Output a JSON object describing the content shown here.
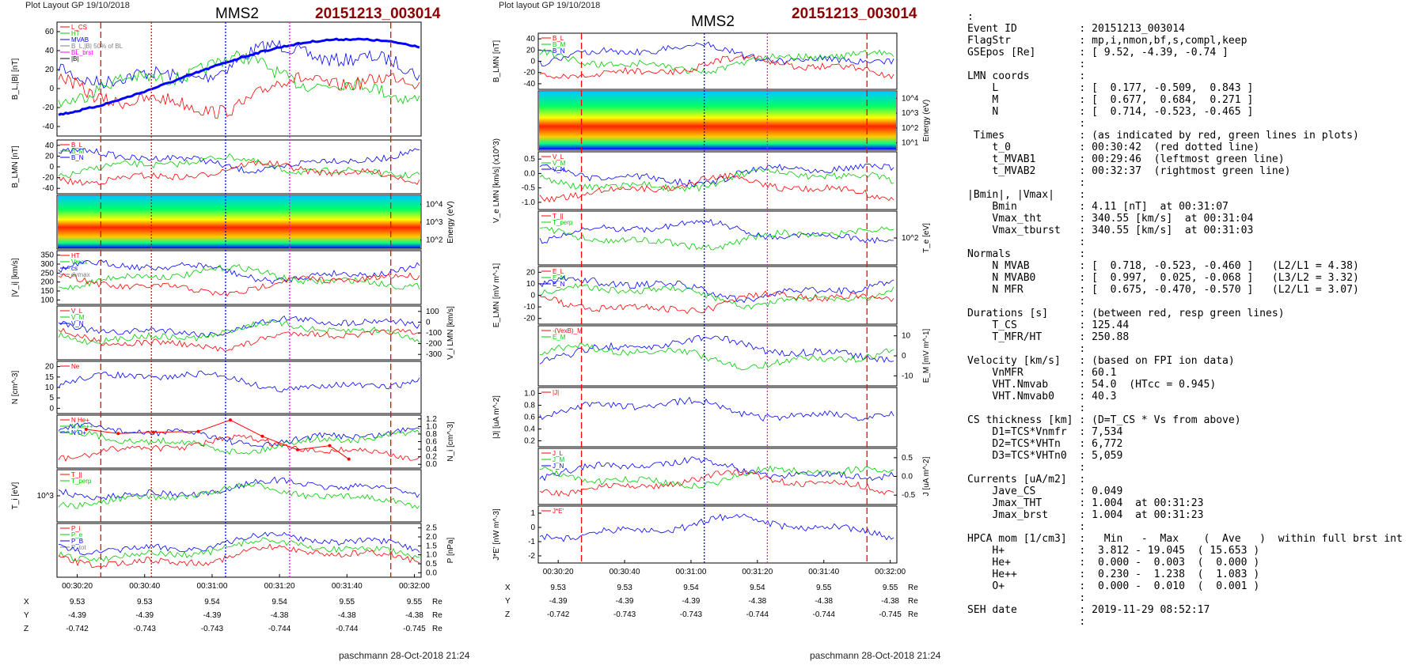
{
  "header": {
    "left_plot_layout": "Plot Layout GP 19/10/2018",
    "right_plot_layout": "Plot layout GP 19/10/2018",
    "spacecraft": "MMS2",
    "event": "20151213_003014",
    "footer": "paschmann 28-Oct-2018 21:24"
  },
  "colors": {
    "event": "#8b0000",
    "red": "#ff0000",
    "blue": "#0000ff",
    "green": "#00cc00",
    "magenta": "#ff00ff",
    "gray": "#808080"
  },
  "chart_data": [
    {
      "type": "line",
      "title": "MMS2 20151213_003014 (left column)",
      "time_ticks": [
        "00:30:20",
        "00:30:40",
        "00:31:00",
        "00:31:20",
        "00:31:40",
        "00:32:00"
      ],
      "panels": [
        {
          "ylabel": "B_L,|B| [nT]",
          "ticks": [
            "60",
            "40",
            "20",
            "0",
            "-20",
            "-40"
          ],
          "legend": [
            "L_CS",
            "HT",
            "MVAB",
            "B_L,|B| 50% of BL",
            "BL_brst",
            "|B|"
          ]
        },
        {
          "ylabel": "B_LMN [nT]",
          "ticks": [
            "40",
            "20",
            "0",
            "-20",
            "-40"
          ],
          "legend": [
            "B_L",
            "B_M",
            "B_N"
          ]
        },
        {
          "ylabel": "Energy (eV)",
          "ticks": [
            "10^4",
            "10^3",
            "10^2"
          ],
          "kind": "spectrogram"
        },
        {
          "ylabel": "|V_i| [km/s]",
          "ticks": [
            "350",
            "300",
            "250",
            "200",
            "150",
            "100"
          ],
          "legend": [
            "HT",
            "Vmax",
            "cs",
            "dvmax"
          ]
        },
        {
          "ylabel": "V_i LMN [km/s]",
          "ticks": [
            "100",
            "0",
            "-100",
            "-200",
            "-300"
          ],
          "legend": [
            "V_L",
            "V_M",
            "V_N"
          ]
        },
        {
          "ylabel": "N [cm^-3]",
          "ticks": [
            "20",
            "15",
            "10",
            "5",
            "0"
          ],
          "legend": [
            "Ne"
          ]
        },
        {
          "ylabel": "N_i [cm^-3]",
          "ticks": [
            "1.2",
            "1.0",
            "0.8",
            "0.6",
            "0.4",
            "0.2",
            "0.0"
          ],
          "legend": [
            "N He+",
            "N He++",
            "N O+"
          ]
        },
        {
          "ylabel": "T_i [eV]",
          "ticks": [
            "10^3"
          ],
          "legend": [
            "T_||",
            "T_perp"
          ]
        },
        {
          "ylabel": "P [nPa]",
          "ticks": [
            "2.5",
            "2.0",
            "1.5",
            "1.0",
            "0.5",
            "0.0"
          ],
          "legend": [
            "P_i",
            "P_e",
            "P_B",
            "P_tot"
          ]
        }
      ],
      "series_HeFrac": {
        "name": "N He++",
        "x_fraction": [
          0.0,
          0.1,
          0.21,
          0.35,
          0.45,
          0.55,
          0.66,
          0.76,
          0.82
        ],
        "values": [
          0.95,
          0.85,
          0.88,
          0.9,
          1.18,
          0.78,
          0.45,
          0.55,
          0.22
        ]
      },
      "markers": {
        "red_dashed": [
          "00:30:27",
          "00:31:53"
        ],
        "red_dotted": [
          "00:30:42"
        ],
        "blue_dotted": [
          "00:31:04"
        ],
        "magenta_dotted": [
          "00:31:23"
        ]
      },
      "positions": {
        "X": [
          "9.53",
          "9.53",
          "9.54",
          "9.54",
          "9.55",
          "9.55"
        ],
        "Y": [
          "-4.39",
          "-4.39",
          "-4.39",
          "-4.38",
          "-4.38",
          "-4.38"
        ],
        "Z": [
          "-0.742",
          "-0.743",
          "-0.743",
          "-0.744",
          "-0.744",
          "-0.745"
        ],
        "unit": "Re"
      }
    },
    {
      "type": "line",
      "title": "MMS2 20151213_003014 (right column)",
      "time_ticks": [
        "00:30:20",
        "00:30:40",
        "00:31:00",
        "00:31:20",
        "00:31:40",
        "00:32:00"
      ],
      "panels": [
        {
          "ylabel": "B_LMN [nT]",
          "ticks": [
            "40",
            "20",
            "0",
            "-20",
            "-40"
          ],
          "legend": [
            "B_L",
            "B_M",
            "B_N"
          ]
        },
        {
          "ylabel": "Energy (eV)",
          "ticks": [
            "10^4",
            "10^3",
            "10^2",
            "10^1"
          ],
          "kind": "spectrogram"
        },
        {
          "ylabel": "V_e LMN [km/s] (x10^3)",
          "ticks": [
            "0.5",
            "0.0",
            "-0.5",
            "-1.0"
          ],
          "legend": [
            "V_L",
            "V_M",
            "V_N"
          ]
        },
        {
          "ylabel": "T_e [eV]",
          "ticks": [
            "10^2"
          ],
          "legend": [
            "T_||",
            "T_perp"
          ]
        },
        {
          "ylabel": "E_LMN [mV m^-1]",
          "ticks": [
            "20",
            "10",
            "0",
            "-10",
            "-20"
          ],
          "legend": [
            "E_L",
            "E_M",
            "E_N"
          ]
        },
        {
          "ylabel": "E_M [mV m^-1]",
          "ticks": [
            "10",
            "0",
            "-10"
          ],
          "legend": [
            "-(VexB)_M",
            "E_M"
          ]
        },
        {
          "ylabel": "|J| [uA m^-2]",
          "ticks": [
            "1.0",
            "0.8",
            "0.6",
            "0.4",
            "0.2"
          ],
          "legend": [
            "|J|"
          ]
        },
        {
          "ylabel": "J [uA m^-2]",
          "ticks": [
            "0.5",
            "0.0",
            "-0.5"
          ],
          "legend": [
            "J_L",
            "J_M",
            "J_N"
          ]
        },
        {
          "ylabel": "J*E' [nW m^-3]",
          "ticks": [
            "1",
            "0",
            "-1",
            "-2"
          ],
          "legend": [
            "J*E'"
          ]
        }
      ],
      "markers": {
        "red_dashed": [
          "00:30:27",
          "00:31:53"
        ],
        "blue_dotted": [
          "00:31:04"
        ],
        "magenta_dotted": [
          "00:31:23"
        ]
      },
      "positions": {
        "X": [
          "9.53",
          "9.53",
          "9.54",
          "9.54",
          "9.55",
          "9.55"
        ],
        "Y": [
          "-4.39",
          "-4.39",
          "-4.39",
          "-4.38",
          "-4.38",
          "-4.38"
        ],
        "Z": [
          "-0.742",
          "-0.743",
          "-0.743",
          "-0.744",
          "-0.744",
          "-0.745"
        ],
        "unit": "Re"
      }
    }
  ],
  "summary_lines": [
    ":",
    "Event ID          : 20151213_003014",
    "FlagStr           : mp,i,nmon,bf,s,compl,keep",
    "GSEpos [Re]       : [ 9.52, -4.39, -0.74 ]",
    "                  :",
    "LMN coords        :",
    "    L             : [  0.177, -0.509,  0.843 ]",
    "    M             : [  0.677,  0.684,  0.271 ]",
    "    N             : [  0.714, -0.523, -0.465 ]",
    "                  :",
    " Times            : (as indicated by red, green lines in plots)",
    "    t_0           : 00:30:42  (red dotted line)",
    "    t_MVAB1       : 00:29:46  (leftmost green line)",
    "    t_MVAB2       : 00:32:37  (rightmost green line)",
    "                  :",
    "|Bmin|, |Vmax|    :",
    "    Bmin          : 4.11 [nT]  at 00:31:07",
    "    Vmax_tht      : 340.55 [km/s]  at 00:31:04",
    "    Vmax_tburst   : 340.55 [km/s]  at 00:31:03",
    "                  :",
    "Normals           :",
    "    N MVAB        : [  0.718, -0.523, -0.460 ]   (L2/L1 = 4.38)",
    "    N MVAB0       : [  0.997,  0.025, -0.068 ]   (L3/L2 = 3.32)",
    "    N MFR         : [  0.675, -0.470, -0.570 ]   (L2/L1 = 3.07)",
    "                  :",
    "Durations [s]     : (between red, resp green lines)",
    "    T_CS          : 125.44",
    "    T_MFR/HT      : 250.88",
    "                  :",
    "Velocity [km/s]   : (based on FPI ion data)",
    "    VnMFR         : 60.1",
    "    VHT.Nmvab     : 54.0  (HTcc = 0.945)",
    "    VHT.Nmvab0    : 40.3",
    "                  :",
    "CS thickness [km] : (D=T_CS * Vs from above)",
    "    D1=TCS*Vnmfr  : 7,534",
    "    D2=TCS*VHTn   : 6,772",
    "    D3=TCS*VHTn0  : 5,059",
    "                  :",
    "Currents [uA/m2]  :",
    "    Jave_CS       : 0.049",
    "    Jmax_THT      : 1.004  at 00:31:23",
    "    Jmax_brst     : 1.004  at 00:31:23",
    "                  :",
    "HPCA mom [1/cm3]  :   Min   -  Max    (  Ave   )  within full brst int",
    "    H+            :  3.812 - 19.045  ( 15.653 )",
    "    He+           :  0.000 -  0.003  (  0.000 )",
    "    He++          :  0.230 -  1.238  (  1.083 )",
    "    O+            :  0.000 -  0.010  (  0.001 )",
    "                  :",
    "SEH date          : 2019-11-29 08:52:17",
    "                  :"
  ]
}
